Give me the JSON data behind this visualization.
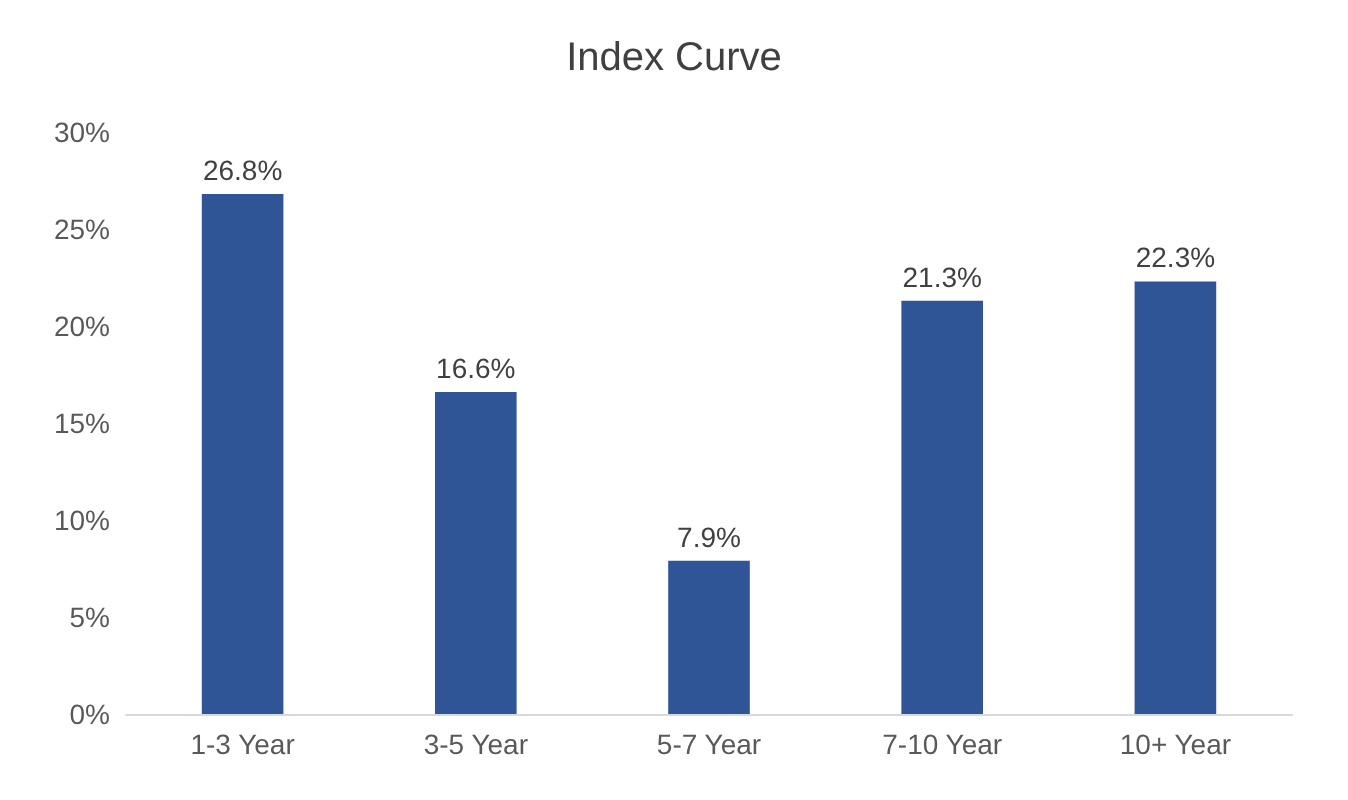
{
  "chart_data": {
    "type": "bar",
    "title": "Index Curve",
    "categories": [
      "1-3 Year",
      "3-5 Year",
      "5-7 Year",
      "7-10 Year",
      "10+ Year"
    ],
    "values": [
      26.8,
      16.6,
      7.9,
      21.3,
      22.3
    ],
    "value_labels": [
      "26.8%",
      "16.6%",
      "7.9%",
      "21.3%",
      "22.3%"
    ],
    "color": "#2f5597",
    "ylim": [
      0,
      30
    ],
    "yticks": [
      {
        "value": 0,
        "label": "0%"
      },
      {
        "value": 5,
        "label": "5%"
      },
      {
        "value": 10,
        "label": "10%"
      },
      {
        "value": 15,
        "label": "15%"
      },
      {
        "value": 20,
        "label": "20%"
      },
      {
        "value": 25,
        "label": "25%"
      },
      {
        "value": 30,
        "label": "30%"
      }
    ],
    "grid": false
  }
}
